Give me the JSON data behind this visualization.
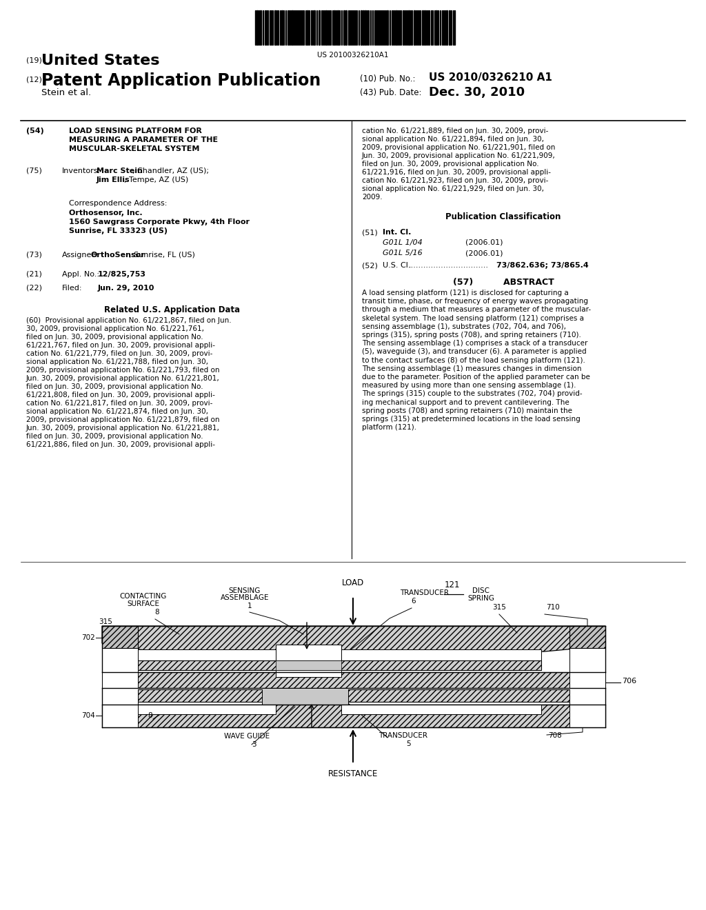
{
  "background_color": "#ffffff",
  "barcode_text": "US 20100326210A1",
  "title_19": "(19) United States",
  "title_12": "(12) Patent Application Publication",
  "pub_no_label": "(10) Pub. No.:",
  "pub_no_value": "US 2010/0326210 A1",
  "pub_date_label": "(43) Pub. Date:",
  "pub_date_value": "Dec. 30, 2010",
  "author": "Stein et al.",
  "field54_label": "(54)",
  "field54_title": "LOAD SENSING PLATFORM FOR\nMEASURING A PARAMETER OF THE\nMUSCULAR-SKELETAL SYSTEM",
  "field75_label": "(75)",
  "field75_title": "Inventors:",
  "field75_value": "Marc Stein, Chandler, AZ (US);\nJim Ellis, Tempe, AZ (US)",
  "corr_address_title": "Correspondence Address:",
  "corr_address_body": "Orthosensor, Inc.\n1560 Sawgrass Corporate Pkwy, 4th Floor\nSunrise, FL 33323 (US)",
  "field73_label": "(73)",
  "field73_title": "Assignee:",
  "field73_value": "OrthoSensor, Sunrise, FL (US)",
  "field21_label": "(21)",
  "field21_title": "Appl. No.:",
  "field21_value": "12/825,753",
  "field22_label": "(22)",
  "field22_title": "Filed:",
  "field22_value": "Jun. 29, 2010",
  "related_data_title": "Related U.S. Application Data",
  "pub_class_title": "Publication Classification",
  "field51_label": "(51)",
  "field51_title": "Int. Cl.",
  "field51_g01l104": "G01L 1/04",
  "field51_g01l104_year": "(2006.01)",
  "field51_g01l516": "G01L 5/16",
  "field51_g01l516_year": "(2006.01)",
  "field52_label": "(52)",
  "field52_title": "U.S. Cl.",
  "field52_value": "73/862.636; 73/865.4",
  "field57_label": "(57)",
  "field57_title": "ABSTRACT",
  "abstract_text": "A load sensing platform (121) is disclosed for capturing a\ntransit time, phase, or frequency of energy waves propagating\nthrough a medium that measures a parameter of the muscular-\nskeletal system. The load sensing platform (121) comprises a\nsensing assemblage (1), substrates (702, 704, and 706),\nsprings (315), spring posts (708), and spring retainers (710).\nThe sensing assemblage (1) comprises a stack of a transducer\n(5), waveguide (3), and transducer (6). A parameter is applied\nto the contact surfaces (8) of the load sensing platform (121).\nThe sensing assemblage (1) measures changes in dimension\ndue to the parameter. Position of the applied parameter can be\nmeasured by using more than one sensing assemblage (1).\nThe springs (315) couple to the substrates (702, 704) provid-\ning mechanical support and to prevent cantilevering. The\nspring posts (708) and spring retainers (710) maintain the\nsprings (315) at predetermined locations in the load sensing\nplatform (121)."
}
